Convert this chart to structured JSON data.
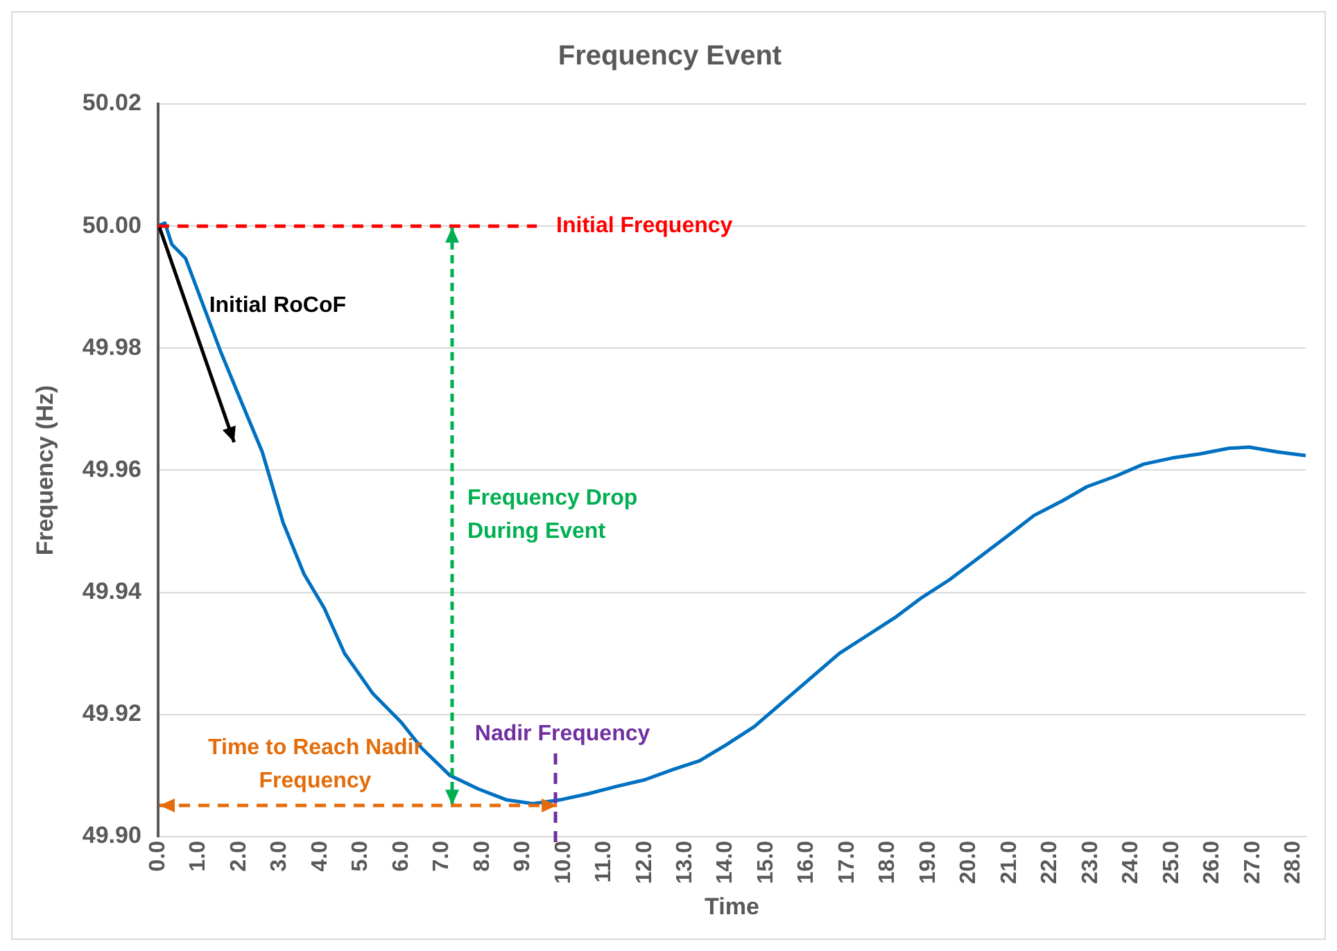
{
  "chart_data": {
    "type": "line",
    "title": "Frequency Event",
    "xlabel": "Time",
    "ylabel": "Frequency (Hz)",
    "series": [
      {
        "color": "#0070c0",
        "x": [
          0,
          0.17,
          0.34,
          0.68,
          1.54,
          2.05,
          2.57,
          3.08,
          3.6,
          4.1,
          4.6,
          5.3,
          6.0,
          6.5,
          7.2,
          7.9,
          8.6,
          9.25,
          9.9,
          10.6,
          11.3,
          12.0,
          12.7,
          13.35,
          14.0,
          14.7,
          15.4,
          16.1,
          16.8,
          17.5,
          18.2,
          18.8,
          19.5,
          20.2,
          20.9,
          21.6,
          22.3,
          22.9,
          23.6,
          24.3,
          25.0,
          25.7,
          26.4,
          26.9,
          27.6,
          28.3
        ],
        "values": [
          50.0,
          50.0005,
          49.997,
          49.9947,
          49.9795,
          49.9713,
          49.963,
          49.9515,
          49.943,
          49.9374,
          49.93,
          49.9234,
          49.9187,
          49.9145,
          49.91,
          49.9078,
          49.906,
          49.9054,
          49.906,
          49.907,
          49.9082,
          49.9093,
          49.911,
          49.9124,
          49.915,
          49.918,
          49.922,
          49.926,
          49.93,
          49.933,
          49.936,
          49.939,
          49.942,
          49.9455,
          49.949,
          49.9526,
          49.955,
          49.9573,
          49.959,
          49.961,
          49.962,
          49.9627,
          49.9636,
          49.9638,
          49.963,
          49.9624
        ]
      }
    ],
    "xlim": [
      0,
      28.3
    ],
    "xticks": [
      {
        "value": 0,
        "label": "0.0"
      },
      {
        "value": 1,
        "label": "1.0"
      },
      {
        "value": 2,
        "label": "2.0"
      },
      {
        "value": 3,
        "label": "3.0"
      },
      {
        "value": 4,
        "label": "4.0"
      },
      {
        "value": 5,
        "label": "5.0"
      },
      {
        "value": 6,
        "label": "6.0"
      },
      {
        "value": 7,
        "label": "7.0"
      },
      {
        "value": 8,
        "label": "8.0"
      },
      {
        "value": 9,
        "label": "9.0"
      },
      {
        "value": 10,
        "label": "10.0"
      },
      {
        "value": 11,
        "label": "11.0"
      },
      {
        "value": 12,
        "label": "12.0"
      },
      {
        "value": 13,
        "label": "13.0"
      },
      {
        "value": 14,
        "label": "14.0"
      },
      {
        "value": 15,
        "label": "15.0"
      },
      {
        "value": 16,
        "label": "16.0"
      },
      {
        "value": 17,
        "label": "17.0"
      },
      {
        "value": 18,
        "label": "18.0"
      },
      {
        "value": 19,
        "label": "19.0"
      },
      {
        "value": 20,
        "label": "20.0"
      },
      {
        "value": 21,
        "label": "21.0"
      },
      {
        "value": 22,
        "label": "22.0"
      },
      {
        "value": 23,
        "label": "23.0"
      },
      {
        "value": 24,
        "label": "24.0"
      },
      {
        "value": 25,
        "label": "25.0"
      },
      {
        "value": 26,
        "label": "26.0"
      },
      {
        "value": 27,
        "label": "27.0"
      },
      {
        "value": 28,
        "label": "28.0"
      }
    ],
    "ylim": [
      49.9,
      50.02
    ],
    "yticks": [
      {
        "value": 49.9,
        "label": "49.90"
      },
      {
        "value": 49.92,
        "label": "49.92"
      },
      {
        "value": 49.94,
        "label": "49.94"
      },
      {
        "value": 49.96,
        "label": "49.96"
      },
      {
        "value": 49.98,
        "label": "49.98"
      },
      {
        "value": 50.0,
        "label": "50.00"
      },
      {
        "value": 50.02,
        "label": "50.02"
      }
    ],
    "grid": "y",
    "legend": false,
    "marker": "none",
    "line_style": "solid",
    "ref_lines": [
      {
        "axis": "y",
        "value": 50.0,
        "label": "Initial Frequency",
        "color": "#ff0000",
        "line_style": "dashed"
      },
      {
        "axis": "x",
        "value": 9.8,
        "label": "Nadir Frequency",
        "color": "#7030a0",
        "line_style": "dashed"
      }
    ],
    "annotations": [
      "Initial RoCoF",
      "Frequency Drop During Event",
      "Time to Reach Nadir Frequency"
    ]
  }
}
